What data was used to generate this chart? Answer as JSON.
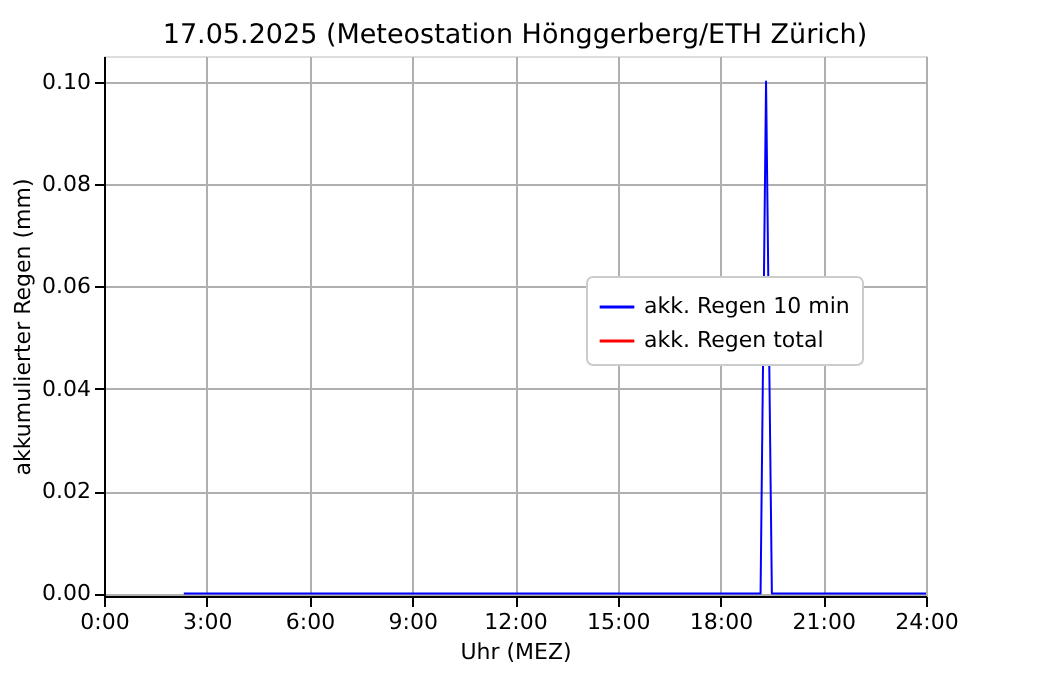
{
  "chart_data": {
    "type": "line",
    "title": "17.05.2025  (Meteostation Hönggerberg/ETH Zürich)",
    "xlabel": "Uhr (MEZ)",
    "ylabel": "akkumulierter Regen (mm)",
    "x": [
      2.33,
      19.17,
      19.33,
      19.5,
      24
    ],
    "series": [
      {
        "name": "akk. Regen 10 min",
        "color": "#0000ff",
        "values": [
          0,
          0,
          0.1,
          0,
          0
        ]
      },
      {
        "name": "akk. Regen total",
        "color": "#ff0000",
        "values": [
          null,
          null,
          null,
          null,
          null
        ]
      }
    ],
    "xlim": [
      0,
      24
    ],
    "xticks": [
      {
        "value": 0,
        "label": "0:00"
      },
      {
        "value": 3,
        "label": "3:00"
      },
      {
        "value": 6,
        "label": "6:00"
      },
      {
        "value": 9,
        "label": "9:00"
      },
      {
        "value": 12,
        "label": "12:00"
      },
      {
        "value": 15,
        "label": "15:00"
      },
      {
        "value": 18,
        "label": "18:00"
      },
      {
        "value": 21,
        "label": "21:00"
      },
      {
        "value": 24,
        "label": "24:00"
      }
    ],
    "ylim": [
      -0.0005,
      0.105
    ],
    "yticks": [
      {
        "value": 0,
        "label": "0.00"
      },
      {
        "value": 0.02,
        "label": "0.02"
      },
      {
        "value": 0.04,
        "label": "0.04"
      },
      {
        "value": 0.06,
        "label": "0.06"
      },
      {
        "value": 0.08,
        "label": "0.08"
      },
      {
        "value": 0.1,
        "label": "0.10"
      }
    ],
    "grid": true,
    "legend": "right",
    "marker": "none",
    "line_style": "solid"
  }
}
